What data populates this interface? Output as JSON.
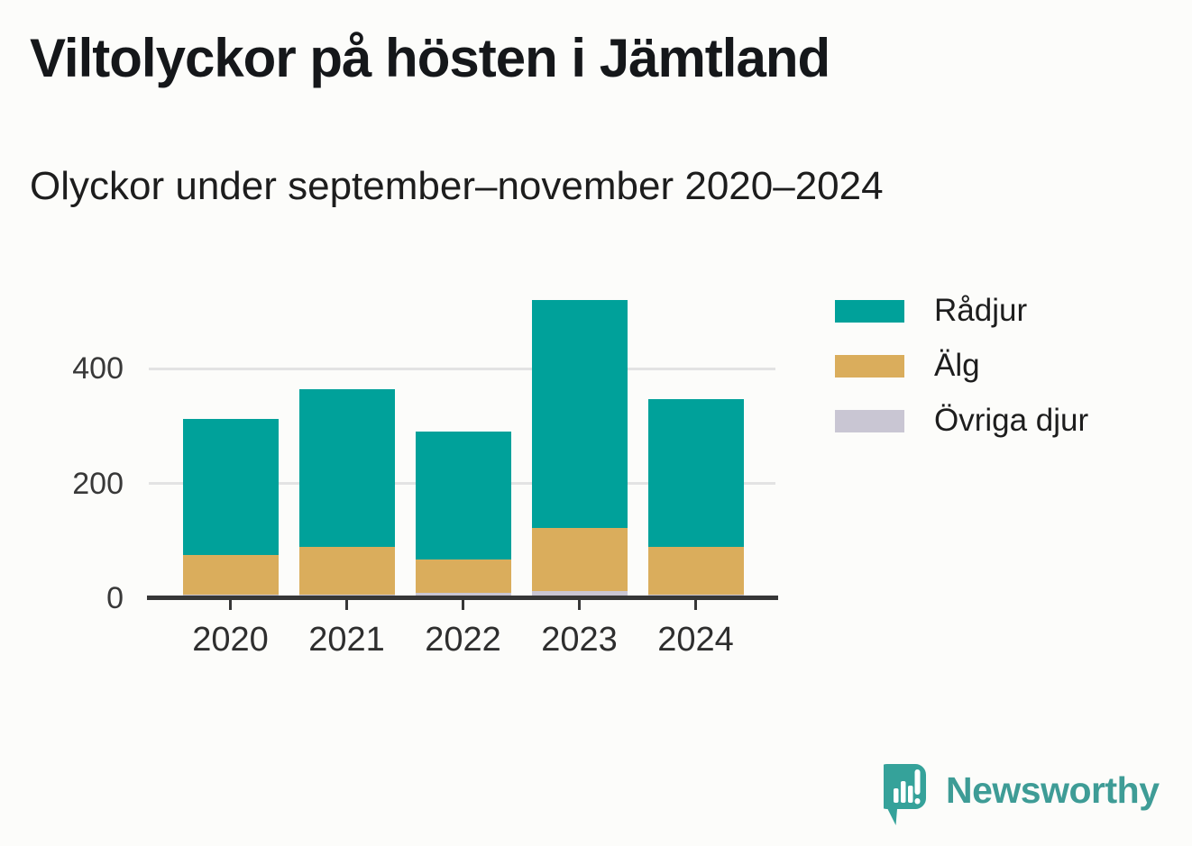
{
  "header": {
    "title": "Viltolyckor på hösten i Jämtland",
    "subtitle": "Olyckor under september–november 2020–2024"
  },
  "chart_data": {
    "type": "bar",
    "stacked": true,
    "categories": [
      "2020",
      "2021",
      "2022",
      "2023",
      "2024"
    ],
    "series": [
      {
        "name": "Rådjur",
        "color": "#00a19a",
        "values": [
          238,
          274,
          222,
          396,
          258
        ]
      },
      {
        "name": "Älg",
        "color": "#daad5c",
        "values": [
          69,
          84,
          58,
          110,
          83
        ]
      },
      {
        "name": "Övriga djur",
        "color": "#c9c6d3",
        "values": [
          6,
          6,
          10,
          13,
          6
        ]
      }
    ],
    "totals": [
      313,
      364,
      290,
      519,
      347
    ],
    "stack_order_bottom_to_top": [
      "Övriga djur",
      "Älg",
      "Rådjur"
    ],
    "title": "Viltolyckor på hösten i Jämtland",
    "subtitle": "Olyckor under september–november 2020–2024",
    "xlabel": "",
    "ylabel": "",
    "yticks": [
      0,
      200,
      400
    ],
    "ylim": [
      0,
      540
    ],
    "grid": true,
    "legend_position": "right"
  },
  "branding": {
    "logo_text": "Newsworthy",
    "logo_color": "#3e9c96",
    "bubble_color": "#35a29a"
  },
  "colors": {
    "background": "#fcfcfa",
    "axis": "#373737",
    "gridline": "#e3e3e3",
    "tick_text": "#383838"
  }
}
